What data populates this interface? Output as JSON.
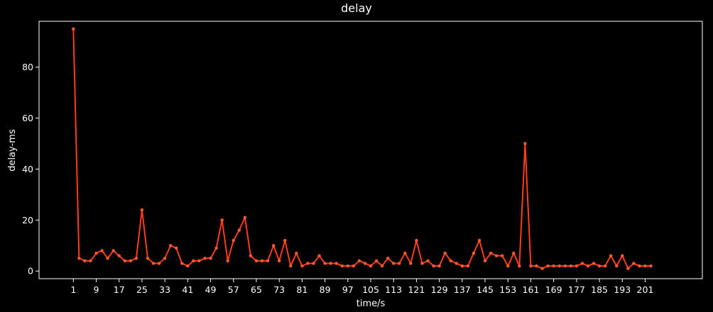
{
  "chart_data": {
    "type": "line",
    "title": "delay",
    "xlabel": "time/s",
    "ylabel": "delay-ms",
    "xlim": [
      -11,
      221
    ],
    "ylim": [
      -3,
      98
    ],
    "xticks": [
      1,
      9,
      17,
      25,
      33,
      41,
      49,
      57,
      65,
      73,
      81,
      89,
      97,
      105,
      113,
      121,
      129,
      137,
      145,
      153,
      161,
      169,
      177,
      185,
      193,
      201
    ],
    "yticks": [
      0,
      20,
      40,
      60,
      80
    ],
    "grid": false,
    "legend": "none",
    "colors": {
      "background": "#000000",
      "line": "#ff3b1a",
      "marker": "#ff5a2a",
      "axis": "#ffffff",
      "text": "#ffffff"
    },
    "series": [
      {
        "x": [
          1,
          3,
          5,
          7,
          9,
          11,
          13,
          15,
          17,
          19,
          21,
          23,
          25,
          27,
          29,
          31,
          33,
          35,
          37,
          39,
          41,
          43,
          45,
          47,
          49,
          51,
          53,
          55,
          57,
          59,
          61,
          63,
          65,
          67,
          69,
          71,
          73,
          75,
          77,
          79,
          81,
          83,
          85,
          87,
          89,
          91,
          93,
          95,
          97,
          99,
          101,
          103,
          105,
          107,
          109,
          111,
          113,
          115,
          117,
          119,
          121,
          123,
          125,
          127,
          129,
          131,
          133,
          135,
          137,
          139,
          141,
          143,
          145,
          147,
          149,
          151,
          153,
          155,
          157,
          159,
          161,
          163,
          165,
          167,
          169,
          171,
          173,
          175,
          177,
          179,
          181,
          183,
          185,
          187,
          189,
          191,
          193,
          195,
          197,
          199,
          201,
          203
        ],
        "values": [
          95,
          5,
          4,
          4,
          7,
          8,
          5,
          8,
          6,
          4,
          4,
          5,
          24,
          5,
          3,
          3,
          5,
          10,
          9,
          3,
          2,
          4,
          4,
          5,
          5,
          9,
          20,
          4,
          12,
          16,
          21,
          6,
          4,
          4,
          4,
          10,
          4,
          12,
          2,
          7,
          2,
          3,
          3,
          6,
          3,
          3,
          3,
          2,
          2,
          2,
          4,
          3,
          2,
          4,
          2,
          5,
          3,
          3,
          7,
          3,
          12,
          3,
          4,
          2,
          2,
          7,
          4,
          3,
          2,
          2,
          7,
          12,
          4,
          7,
          6,
          6,
          2,
          7,
          2,
          50,
          2,
          2,
          1,
          2,
          2,
          2,
          2,
          2,
          2,
          3,
          2,
          3,
          2,
          2,
          6,
          2,
          6,
          1,
          3,
          2,
          2,
          2
        ]
      }
    ]
  }
}
